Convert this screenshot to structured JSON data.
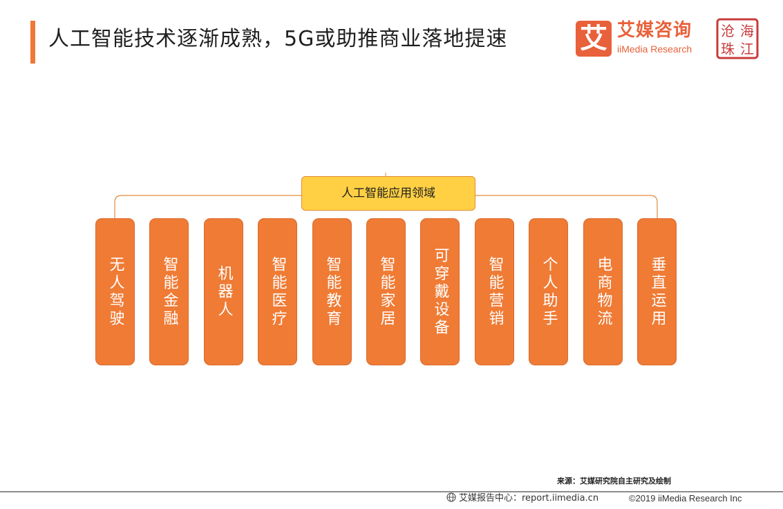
{
  "header": {
    "title": "人工智能技术逐渐成熟，5G或助推商业落地提速",
    "accent_color": "#f07735"
  },
  "logo": {
    "mark": "艾",
    "name_cn": "艾媒咨询",
    "name_en": "iiMedia Research",
    "color": "#e8613a"
  },
  "seal": {
    "text": "沧海珠江"
  },
  "diagram": {
    "root": "人工智能应用领域",
    "root_color": "#ffd043",
    "leaf_color": "#ef7b35",
    "leaves": [
      "无人驾驶",
      "智能金融",
      "机器人",
      "智能医疗",
      "智能教育",
      "智能家居",
      "可穿戴设备",
      "智能营销",
      "个人助手",
      "电商物流",
      "垂直运用"
    ]
  },
  "source": "来源：艾媒研究院自主研究及绘制",
  "footer": {
    "globe_icon": "globe-icon",
    "report_center": "艾媒报告中心：report.iimedia.cn",
    "copyright": "©2019  iiMedia Research Inc"
  }
}
